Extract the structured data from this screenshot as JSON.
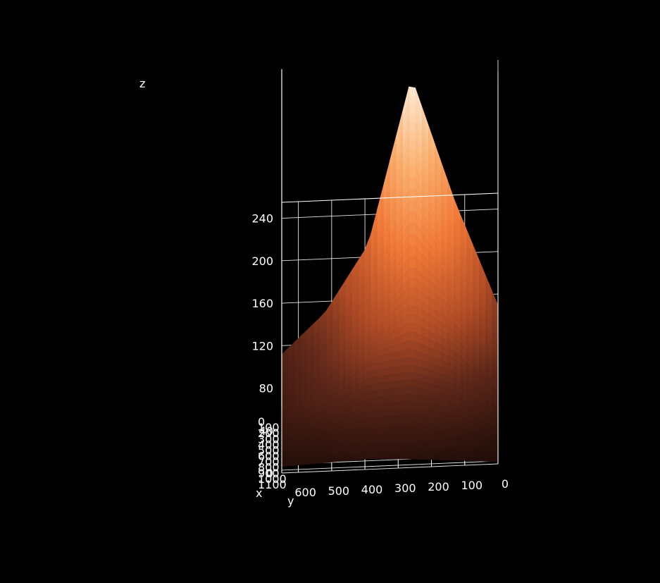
{
  "chart_data": {
    "type": "surface",
    "title": "",
    "xlabel": "x",
    "ylabel": "y",
    "zlabel": "z",
    "x_ticks": [
      "0",
      "100",
      "200",
      "300",
      "400",
      "500",
      "600",
      "700",
      "800",
      "900",
      "1000",
      "1100"
    ],
    "y_ticks": [
      "0",
      "100",
      "200",
      "300",
      "400",
      "500",
      "600"
    ],
    "z_ticks": [
      "0",
      "40",
      "80",
      "120",
      "160",
      "200",
      "240"
    ],
    "xlim": [
      0,
      1150
    ],
    "ylim": [
      0,
      650
    ],
    "zlim": [
      0,
      255
    ],
    "grid": true,
    "colormap": "copper-to-white",
    "background": "#000000",
    "surface_grid": {
      "x": [
        0,
        230,
        460,
        690,
        920,
        1150
      ],
      "y": [
        0,
        130,
        260,
        390,
        520,
        650
      ],
      "z": [
        [
          70,
          150,
          245,
          120,
          70,
          40
        ],
        [
          65,
          130,
          200,
          105,
          60,
          35
        ],
        [
          55,
          100,
          130,
          90,
          55,
          30
        ],
        [
          30,
          60,
          75,
          70,
          45,
          25
        ],
        [
          10,
          25,
          30,
          30,
          20,
          15
        ],
        [
          2,
          5,
          8,
          10,
          8,
          6
        ]
      ]
    }
  }
}
